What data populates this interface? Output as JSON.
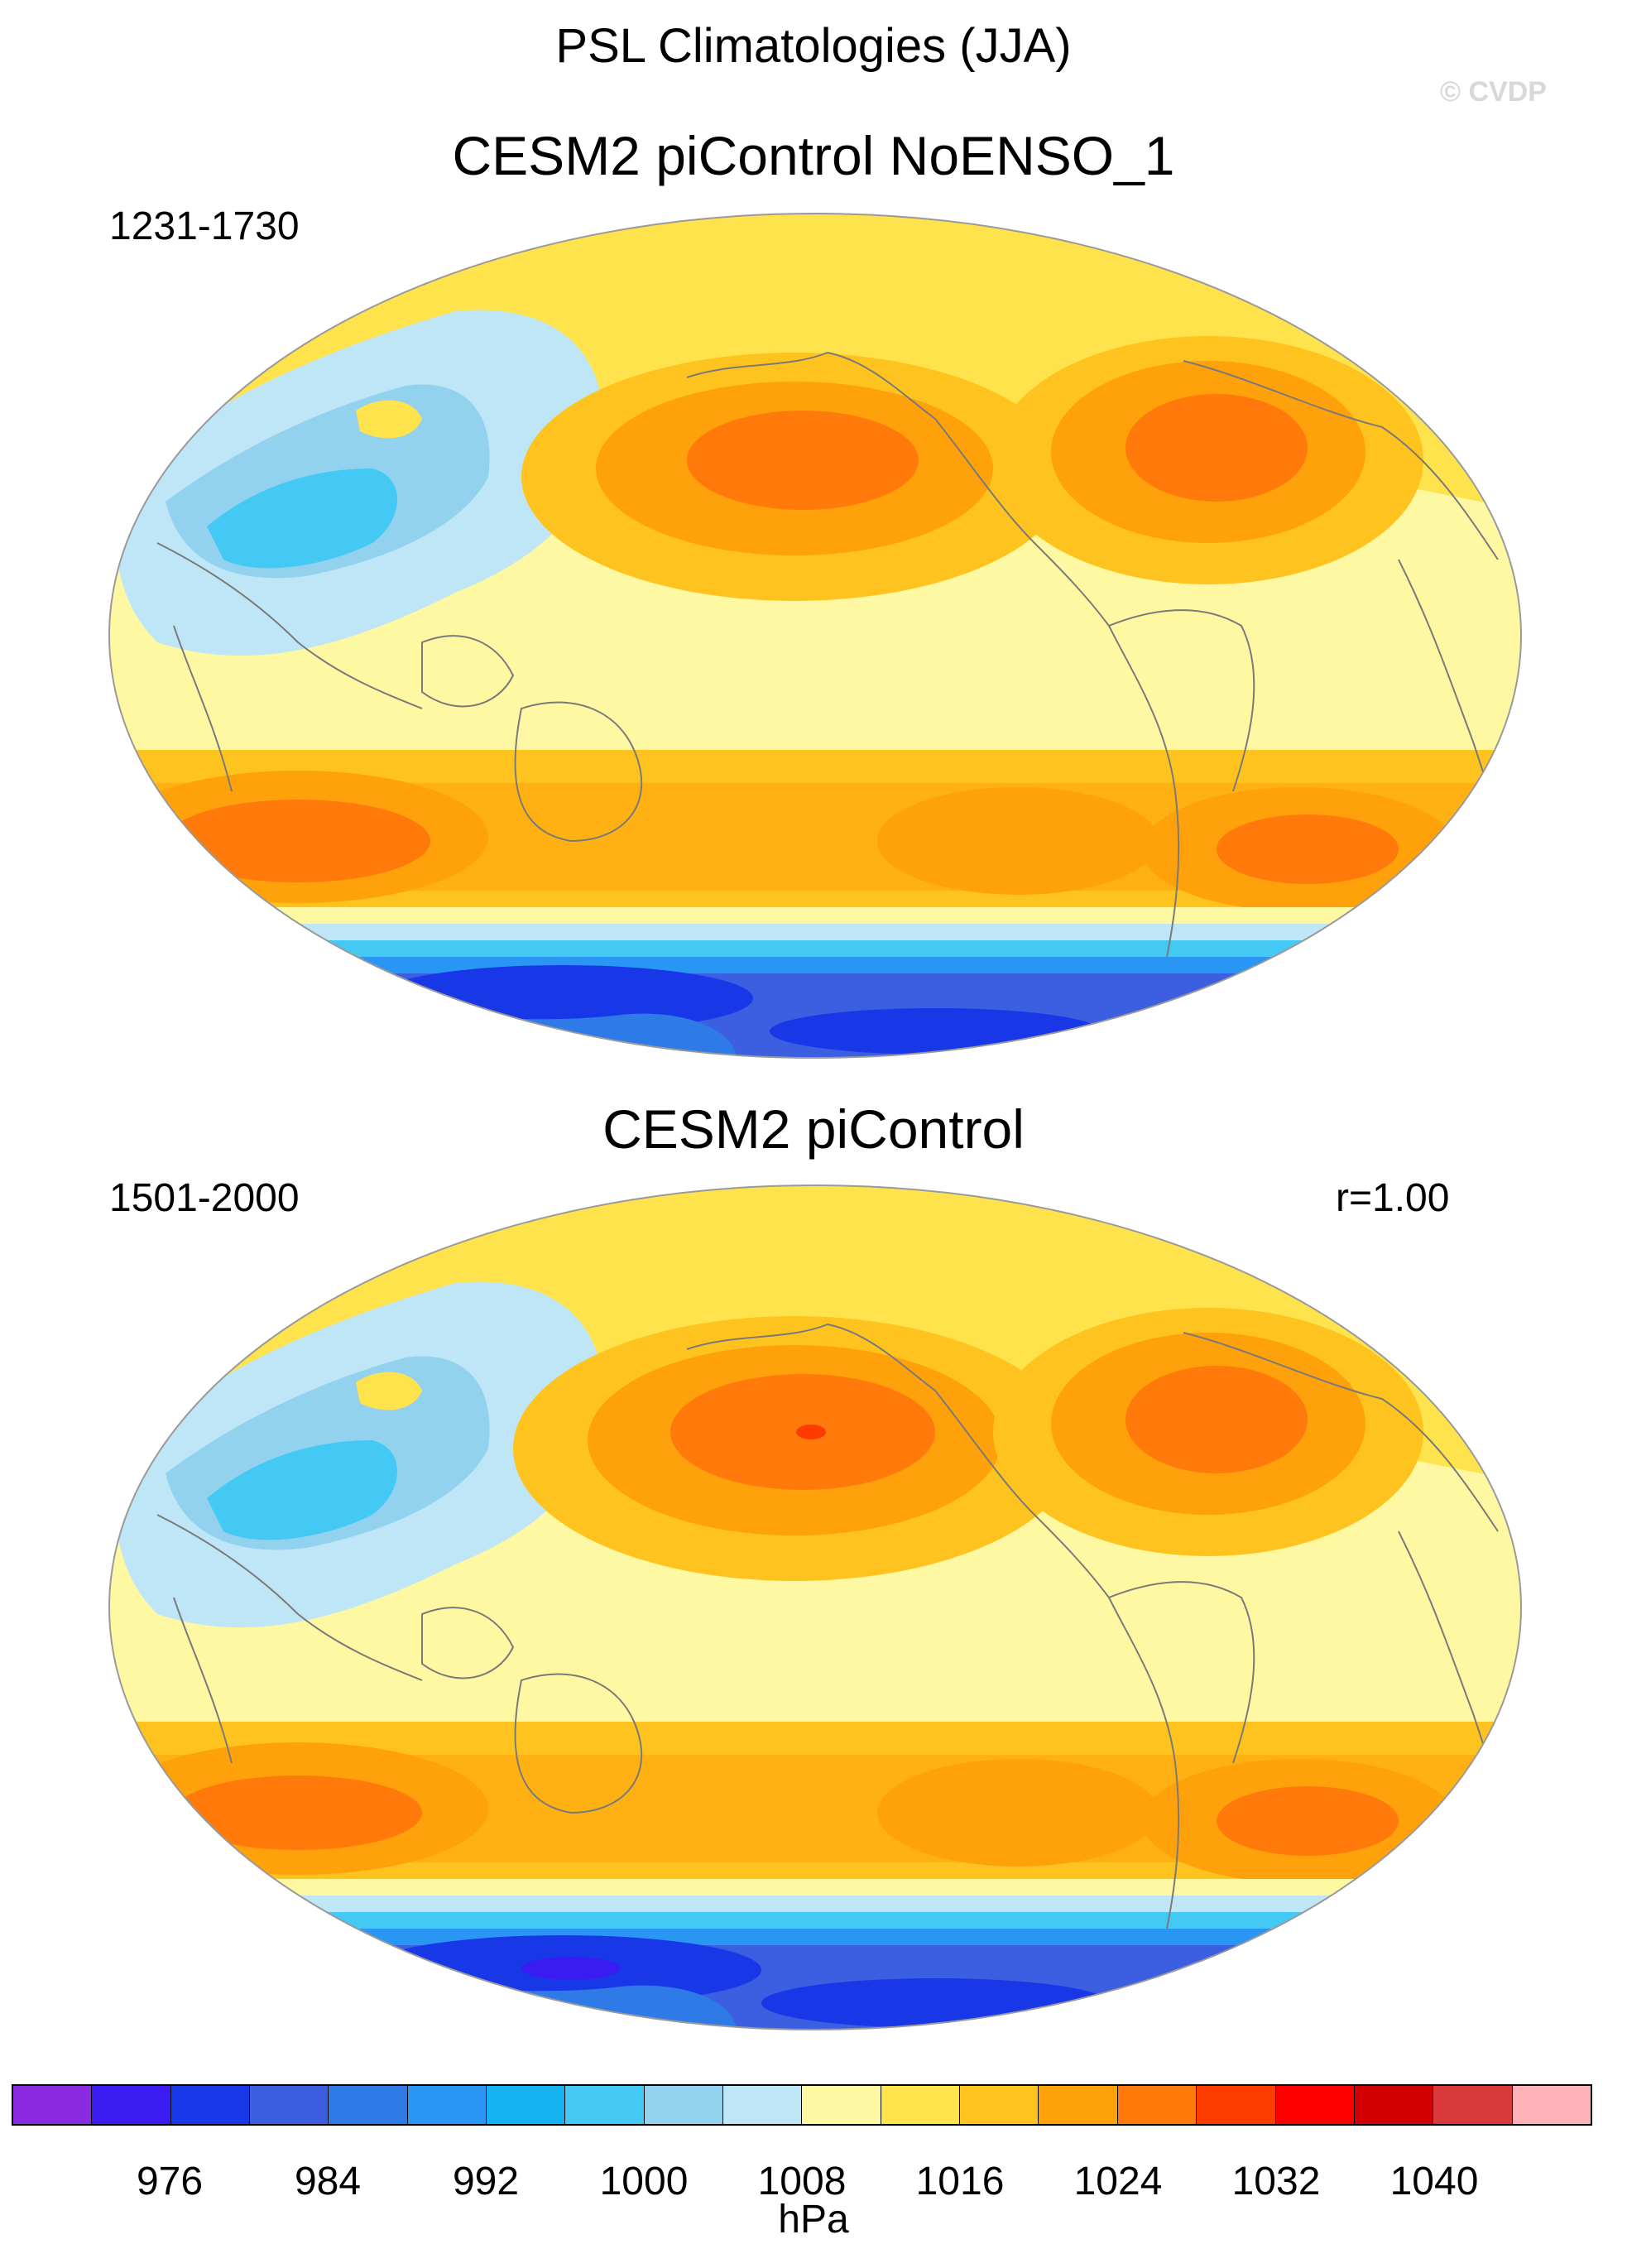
{
  "figure": {
    "title": "PSL Climatologies (JJA)",
    "watermark": "© CVDP"
  },
  "panels": [
    {
      "title": "CESM2 piControl NoENSO_1",
      "period": "1231-1730",
      "corr": ""
    },
    {
      "title": "CESM2 piControl",
      "period": "1501-2000",
      "corr": "r=1.00"
    }
  ],
  "colorbar": {
    "units": "hPa",
    "labels": [
      "976",
      "984",
      "992",
      "1000",
      "1008",
      "1016",
      "1024",
      "1032",
      "1040"
    ],
    "colors": [
      "#8a2be2",
      "#3a1cf2",
      "#1838e8",
      "#3c5ee0",
      "#2e7be8",
      "#2896f2",
      "#14b2f0",
      "#44c8f4",
      "#92d2ef",
      "#bfe6f7",
      "#fff8a3",
      "#ffe34d",
      "#ffc31f",
      "#ffa10a",
      "#ff7a0a",
      "#ff3c00",
      "#ff0000",
      "#d20000",
      "#d93b3b",
      "#ffb3b8"
    ]
  },
  "palette": {
    "deep_blue": "#1a2ee8",
    "mid_blue": "#3a66de",
    "light_blue": "#8ecdf0",
    "pale_blue": "#bfe6f7",
    "pale_yellow": "#fff8a3",
    "yellow": "#ffe34d",
    "gold": "#ffc31f",
    "orange": "#ffa10a",
    "dark_orange": "#ff7a0a",
    "red": "#ff3c00",
    "coast": "#7a7a7a"
  }
}
